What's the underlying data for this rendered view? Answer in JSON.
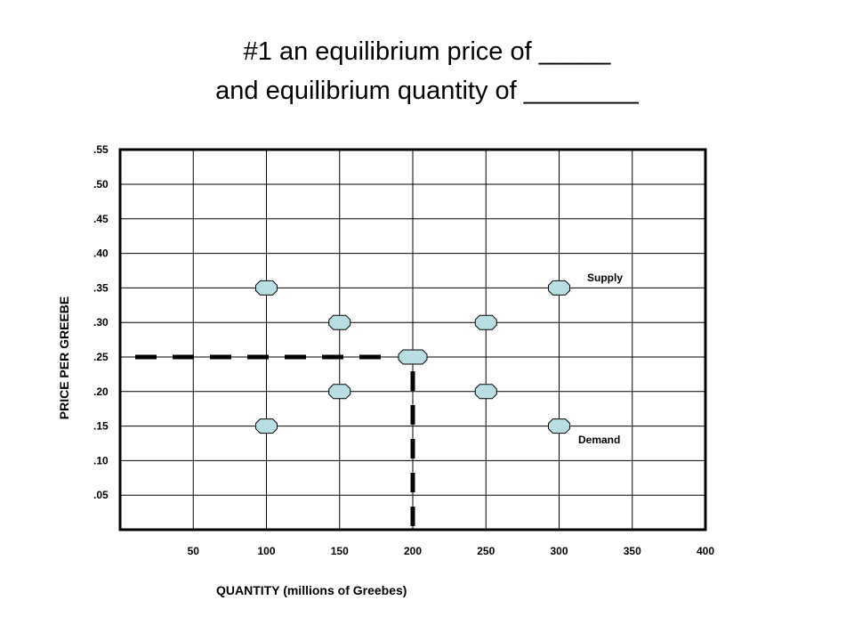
{
  "slide": {
    "title_line1": "#1 an equilibrium price of _____",
    "title_line2": "and equilibrium quantity of ________"
  },
  "chart_data": {
    "type": "scatter",
    "ylabel": "PRICE PER GREEBE",
    "xlabel": "QUANTITY (millions of Greebes)",
    "x_ticks": [
      "50",
      "100",
      "150",
      "200",
      "250",
      "300",
      "350",
      "400"
    ],
    "y_ticks": [
      ".05",
      ".10",
      ".15",
      ".20",
      ".25",
      ".30",
      ".35",
      ".40",
      ".45",
      ".50",
      ".55"
    ],
    "xlim": [
      0,
      400
    ],
    "ylim": [
      0,
      0.55
    ],
    "grid": true,
    "series": [
      {
        "name": "Supply",
        "points": [
          {
            "x": 100,
            "y": 0.15
          },
          {
            "x": 150,
            "y": 0.2
          },
          {
            "x": 200,
            "y": 0.25
          },
          {
            "x": 250,
            "y": 0.3
          },
          {
            "x": 300,
            "y": 0.35
          }
        ]
      },
      {
        "name": "Demand",
        "points": [
          {
            "x": 100,
            "y": 0.35
          },
          {
            "x": 150,
            "y": 0.3
          },
          {
            "x": 200,
            "y": 0.25
          },
          {
            "x": 250,
            "y": 0.2
          },
          {
            "x": 300,
            "y": 0.15
          }
        ]
      }
    ],
    "equilibrium": {
      "x": 200,
      "y": 0.25
    },
    "marker_color": "#b7dfe3",
    "guide_color": "#000000"
  }
}
